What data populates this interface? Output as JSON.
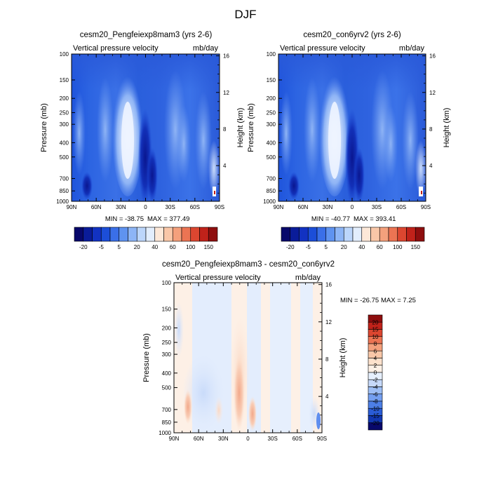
{
  "figure": {
    "title": "DJF"
  },
  "chart_data": [
    {
      "type": "heatmap",
      "id": "p1",
      "title": "cesm20_Pengfeiexp8mam3 (yrs 2-6)",
      "left_label": "Vertical pressure velocity",
      "right_label": "mb/day",
      "ylabel": "Pressure (mb)",
      "y2label": "Height (km)",
      "xticks": [
        "90N",
        "60N",
        "30N",
        "0",
        "30S",
        "60S",
        "90S"
      ],
      "yticks": [
        "100",
        "150",
        "200",
        "250",
        "300",
        "400",
        "500",
        "700",
        "850",
        "1000"
      ],
      "y2ticks": [
        "16",
        "12",
        "8",
        "4"
      ],
      "min_label": "MIN = -38.75",
      "max_label": "MAX = 377.49",
      "colorbar": {
        "labels": [
          "-20",
          "-5",
          "5",
          "20",
          "40",
          "60",
          "100",
          "150"
        ],
        "colors": [
          "#08086b",
          "#0a1c99",
          "#1232c2",
          "#1c4ed8",
          "#3a6fe8",
          "#5f93f0",
          "#8db5f6",
          "#bcd6fb",
          "#e3eefd",
          "#fde8d8",
          "#f9c7a8",
          "#f4a07c",
          "#ec7453",
          "#dc4630",
          "#c0221a",
          "#8e0e0e"
        ]
      }
    },
    {
      "type": "heatmap",
      "id": "p2",
      "title": "cesm20_con6yrv2 (yrs 2-6)",
      "left_label": "Vertical pressure velocity",
      "right_label": "mb/day",
      "ylabel": "Pressure (mb)",
      "y2label": "Height (km)",
      "xticks": [
        "90N",
        "60N",
        "30N",
        "0",
        "30S",
        "60S",
        "90S"
      ],
      "yticks": [
        "100",
        "150",
        "200",
        "250",
        "300",
        "400",
        "500",
        "700",
        "850",
        "1000"
      ],
      "y2ticks": [
        "16",
        "12",
        "8",
        "4"
      ],
      "min_label": "MIN = -40.77",
      "max_label": "MAX = 393.41",
      "colorbar": {
        "labels": [
          "-20",
          "-5",
          "5",
          "20",
          "40",
          "60",
          "100",
          "150"
        ],
        "colors": [
          "#08086b",
          "#0a1c99",
          "#1232c2",
          "#1c4ed8",
          "#3a6fe8",
          "#5f93f0",
          "#8db5f6",
          "#bcd6fb",
          "#e3eefd",
          "#fde8d8",
          "#f9c7a8",
          "#f4a07c",
          "#ec7453",
          "#dc4630",
          "#c0221a",
          "#8e0e0e"
        ]
      }
    },
    {
      "type": "heatmap",
      "id": "p3",
      "title": "cesm20_Pengfeiexp8mam3 - cesm20_con6yrv2",
      "left_label": "Vertical pressure velocity",
      "right_label": "mb/day",
      "ylabel": "Pressure (mb)",
      "y2label": "Height (km)",
      "xticks": [
        "90N",
        "60N",
        "30N",
        "0",
        "30S",
        "60S",
        "90S"
      ],
      "yticks": [
        "100",
        "150",
        "200",
        "250",
        "300",
        "400",
        "500",
        "700",
        "850",
        "1000"
      ],
      "y2ticks": [
        "16",
        "12",
        "8",
        "4"
      ],
      "min_label": "MIN = -26.75",
      "max_label": "MAX =   7.25",
      "colorbar": {
        "labels": [
          "20",
          "15",
          "10",
          "8",
          "6",
          "4",
          "2",
          "0",
          "-2",
          "-4",
          "-6",
          "-8",
          "-10",
          "-15",
          "-20"
        ],
        "colors": [
          "#8e0e0e",
          "#c0221a",
          "#dc4630",
          "#ec7453",
          "#f4a07c",
          "#f9c7a8",
          "#fde1cc",
          "#fdf0e6",
          "#e6effd",
          "#c6d9fa",
          "#9dbef5",
          "#749ff0",
          "#4d7fe6",
          "#2a5cd6",
          "#1238b2",
          "#08086b"
        ]
      }
    }
  ]
}
